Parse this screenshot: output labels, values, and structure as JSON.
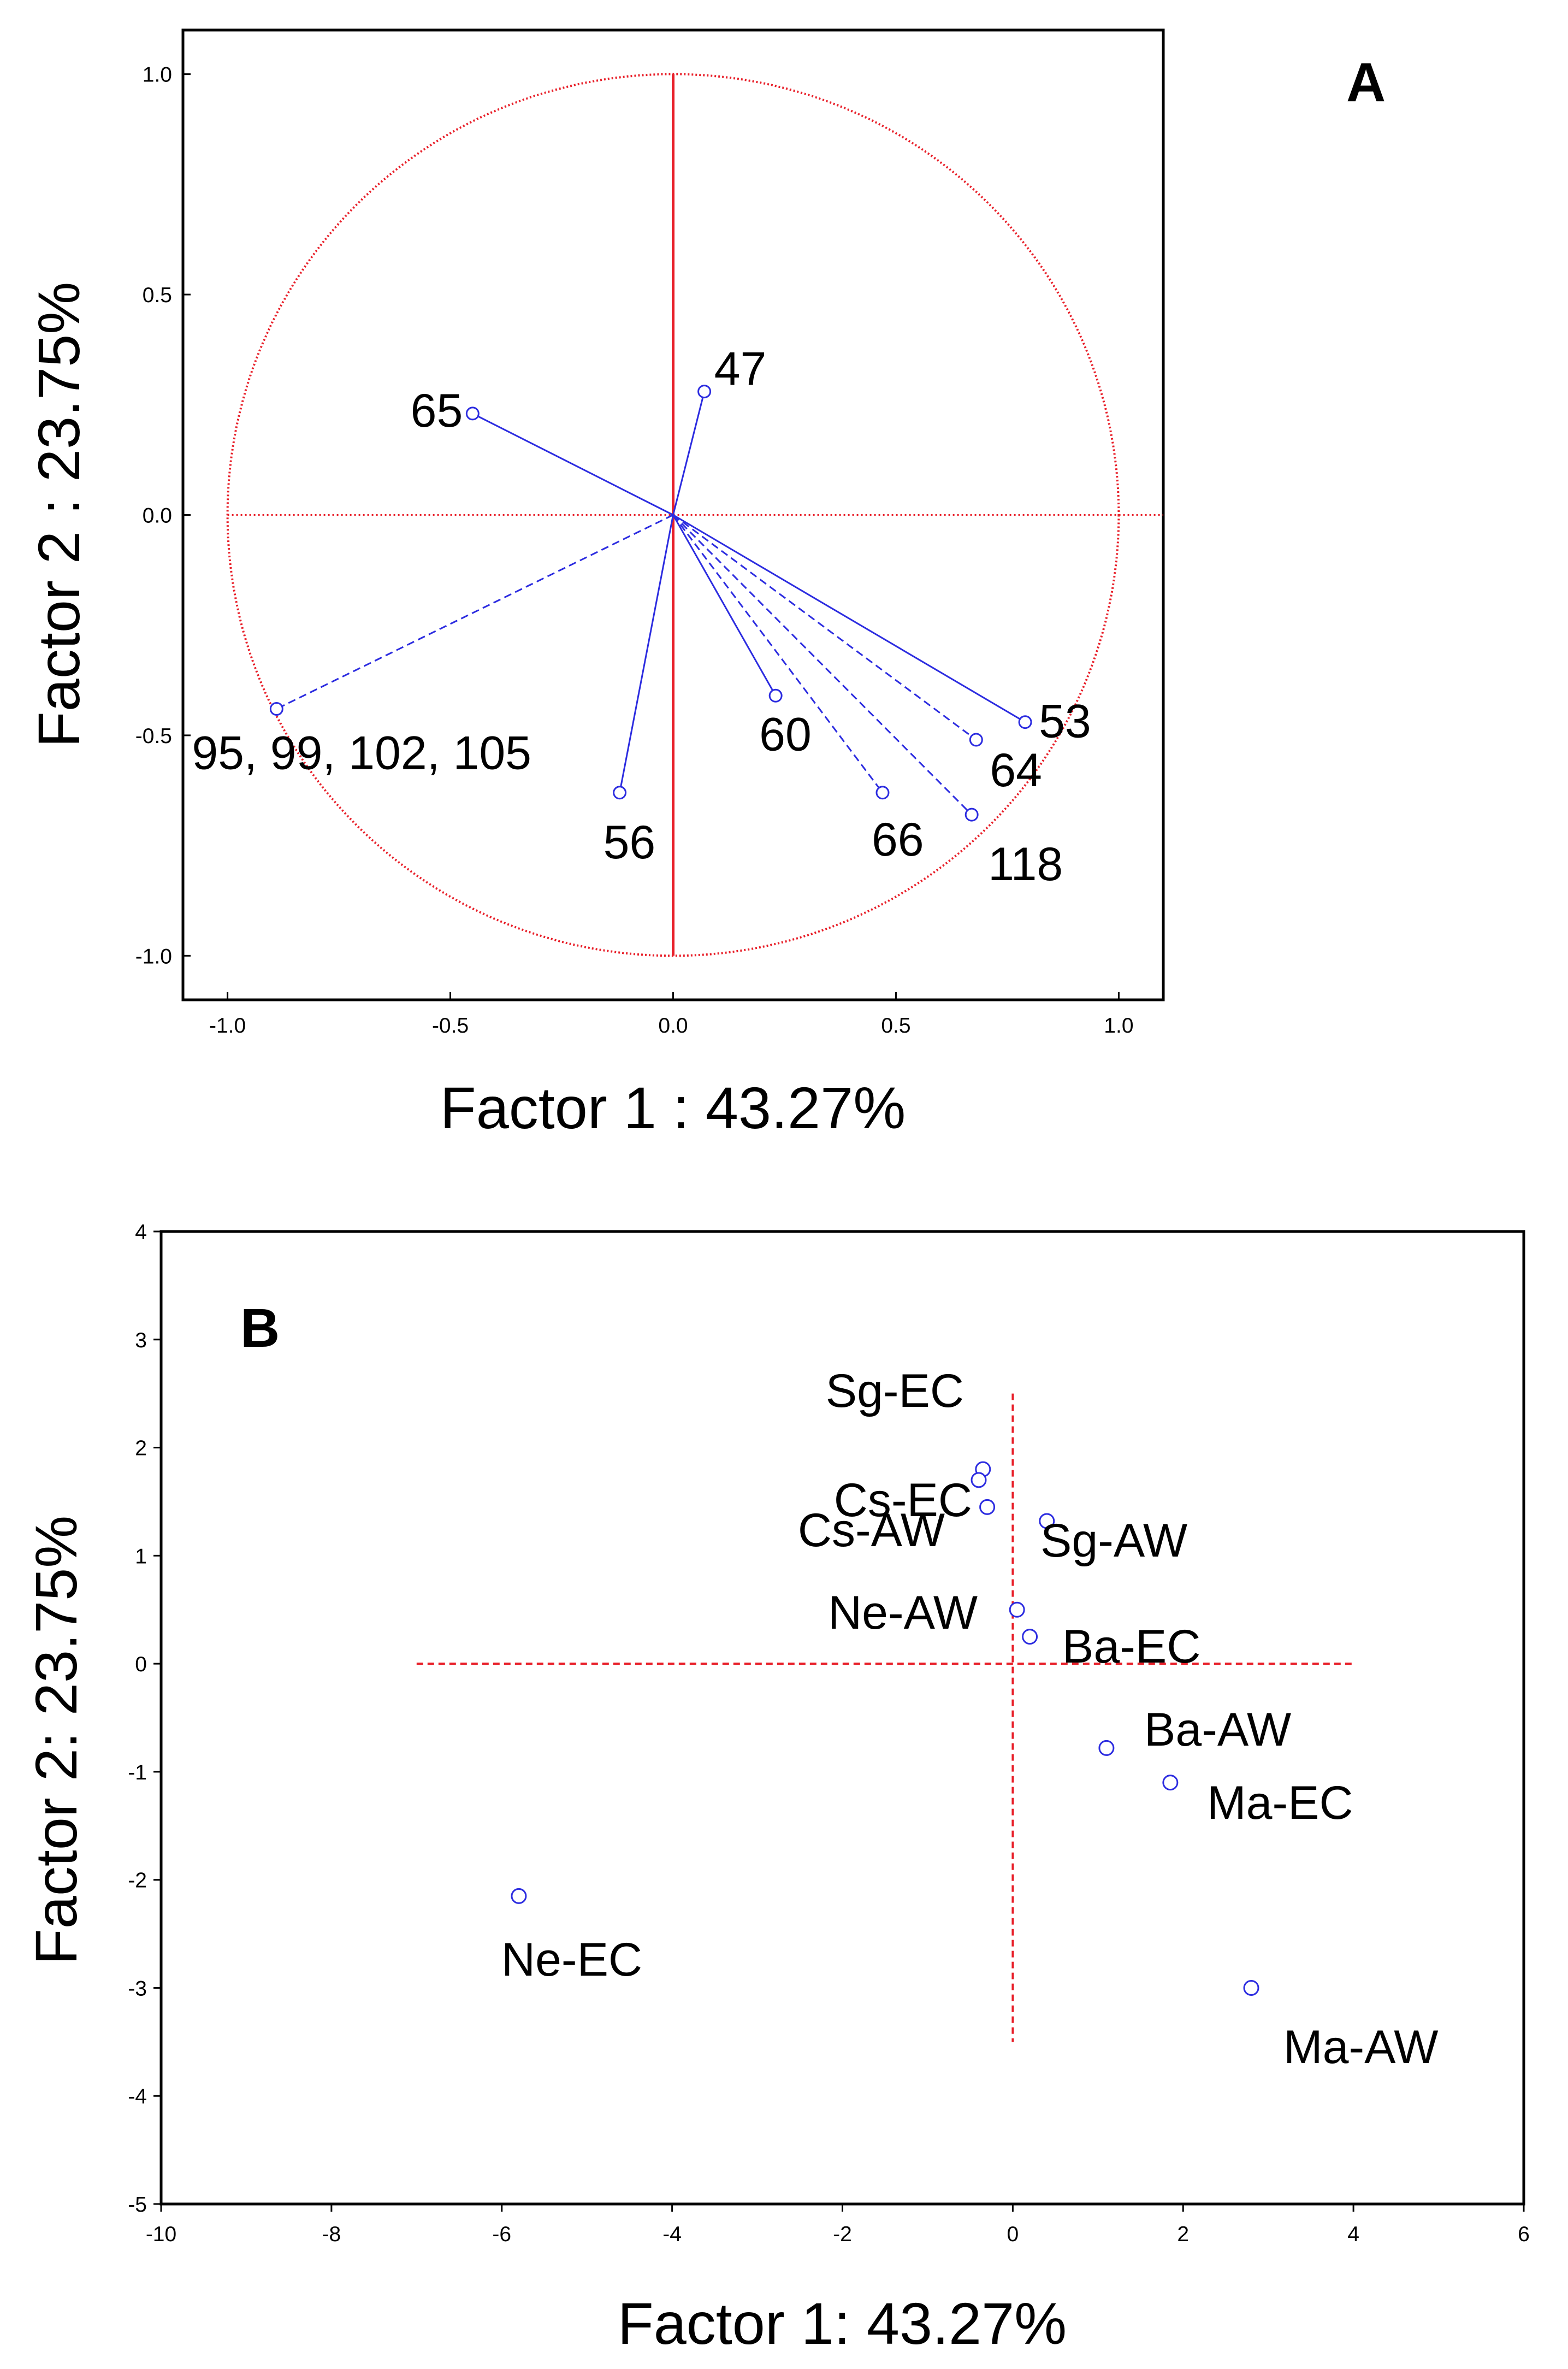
{
  "chart_data": [
    {
      "type": "scatter",
      "panel_label": "A",
      "title": "",
      "xlabel": "Factor 1 : 43.27%",
      "ylabel": "Factor 2 : 23.75%",
      "xlim": [
        -1.1,
        1.1
      ],
      "ylim": [
        -1.1,
        1.1
      ],
      "xticks": [
        "-1.0",
        "-0.5",
        "0.0",
        "0.5",
        "1.0"
      ],
      "yticks": [
        "1.0",
        "0.5",
        "0.0",
        "-0.5",
        "-1.0"
      ],
      "unit_circle": true,
      "vectors": [
        {
          "label": "47",
          "x": 0.07,
          "y": 0.28,
          "style": "solid"
        },
        {
          "label": "65",
          "x": -0.45,
          "y": 0.23,
          "style": "solid"
        },
        {
          "label": "95, 99, 102, 105",
          "x": -0.89,
          "y": -0.44,
          "style": "dashed"
        },
        {
          "label": "56",
          "x": -0.12,
          "y": -0.63,
          "style": "solid"
        },
        {
          "label": "60",
          "x": 0.23,
          "y": -0.41,
          "style": "solid"
        },
        {
          "label": "66",
          "x": 0.47,
          "y": -0.63,
          "style": "dashed"
        },
        {
          "label": "64",
          "x": 0.68,
          "y": -0.51,
          "style": "dashed"
        },
        {
          "label": "53",
          "x": 0.79,
          "y": -0.47,
          "style": "solid"
        },
        {
          "label": "118",
          "x": 0.67,
          "y": -0.68,
          "style": "dashed"
        }
      ]
    },
    {
      "type": "scatter",
      "panel_label": "B",
      "title": "",
      "xlabel": "Factor 1: 43.27%",
      "ylabel": "Factor 2: 23.75%",
      "xlim": [
        -10,
        6
      ],
      "ylim": [
        -5,
        4
      ],
      "xticks": [
        "-10",
        "-8",
        "-6",
        "-4",
        "-2",
        "0",
        "2",
        "4",
        "6"
      ],
      "yticks": [
        "4",
        "3",
        "2",
        "1",
        "0",
        "-1",
        "-2",
        "-3",
        "-4",
        "-5"
      ],
      "points": [
        {
          "label": "Sg-EC",
          "x": -0.35,
          "y": 1.8
        },
        {
          "label": "Cs-EC",
          "x": -0.4,
          "y": 1.7
        },
        {
          "label": "Cs-AW",
          "x": -0.3,
          "y": 1.45
        },
        {
          "label": "Sg-AW",
          "x": 0.4,
          "y": 1.32
        },
        {
          "label": "Ne-AW",
          "x": 0.05,
          "y": 0.5
        },
        {
          "label": "Ba-EC",
          "x": 0.2,
          "y": 0.25
        },
        {
          "label": "Ba-AW",
          "x": 1.1,
          "y": -0.78
        },
        {
          "label": "Ma-EC",
          "x": 1.85,
          "y": -1.1
        },
        {
          "label": "Ne-EC",
          "x": -5.8,
          "y": -2.15
        },
        {
          "label": "Ma-AW",
          "x": 2.8,
          "y": -3.0
        }
      ]
    }
  ]
}
